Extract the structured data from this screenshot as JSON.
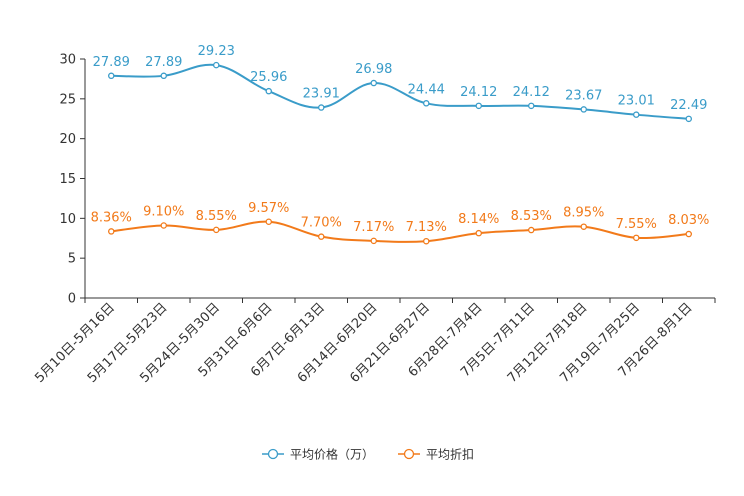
{
  "chart_data": {
    "type": "line",
    "title": "",
    "xlabel": "",
    "ylabel": "",
    "ylim": [
      0,
      30
    ],
    "yticks": [
      0,
      5,
      10,
      15,
      20,
      25,
      30
    ],
    "grid": false,
    "legend_position": "bottom-center",
    "categories": [
      "5月10日-5月16日",
      "5月17日-5月23日",
      "5月24日-5月30日",
      "5月31日-6月6日",
      "6月7日-6月13日",
      "6月14日-6月20日",
      "6月21日-6月27日",
      "6月28日-7月4日",
      "7月5日-7月11日",
      "7月12日-7月18日",
      "7月19日-7月25日",
      "7月26日-8月1日"
    ],
    "series": [
      {
        "name": "平均价格（万）",
        "color": "#3a9cc9",
        "values": [
          27.89,
          27.89,
          29.23,
          25.96,
          23.91,
          26.98,
          24.44,
          24.12,
          24.12,
          23.67,
          23.01,
          22.49
        ],
        "labels": [
          "27.89",
          "27.89",
          "29.23",
          "25.96",
          "23.91",
          "26.98",
          "24.44",
          "24.12",
          "24.12",
          "23.67",
          "23.01",
          "22.49"
        ]
      },
      {
        "name": "平均折扣",
        "color": "#f27a1a",
        "values": [
          8.36,
          9.1,
          8.55,
          9.57,
          7.7,
          7.17,
          7.13,
          8.14,
          8.53,
          8.95,
          7.55,
          8.03
        ],
        "labels": [
          "8.36%",
          "9.10%",
          "8.55%",
          "9.57%",
          "7.70%",
          "7.17%",
          "7.13%",
          "8.14%",
          "8.53%",
          "8.95%",
          "7.55%",
          "8.03%"
        ]
      }
    ]
  }
}
